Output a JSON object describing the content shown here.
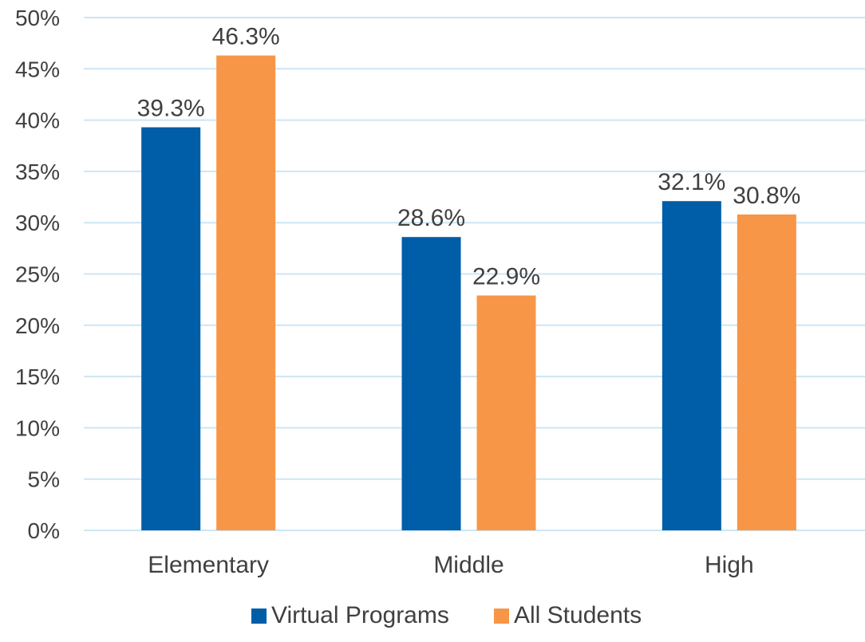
{
  "chart_data": {
    "type": "bar",
    "categories": [
      "Elementary",
      "Middle",
      "High"
    ],
    "series": [
      {
        "name": "Virtual Programs",
        "values": [
          39.3,
          28.6,
          32.1
        ],
        "color": "#005DA8"
      },
      {
        "name": "All Students",
        "values": [
          46.3,
          22.9,
          30.8
        ],
        "color": "#F79646"
      }
    ],
    "value_labels": [
      [
        "39.3%",
        "28.6%",
        "32.1%"
      ],
      [
        "46.3%",
        "22.9%",
        "30.8%"
      ]
    ],
    "ylim": [
      0,
      50
    ],
    "yticks": [
      0,
      5,
      10,
      15,
      20,
      25,
      30,
      35,
      40,
      45,
      50
    ],
    "ytick_labels": [
      "0%",
      "5%",
      "10%",
      "15%",
      "20%",
      "25%",
      "30%",
      "35%",
      "40%",
      "45%",
      "50%"
    ],
    "grid": true,
    "grid_color": "#CDE6F5",
    "legend_position": "bottom",
    "title": "",
    "xlabel": "",
    "ylabel": ""
  }
}
